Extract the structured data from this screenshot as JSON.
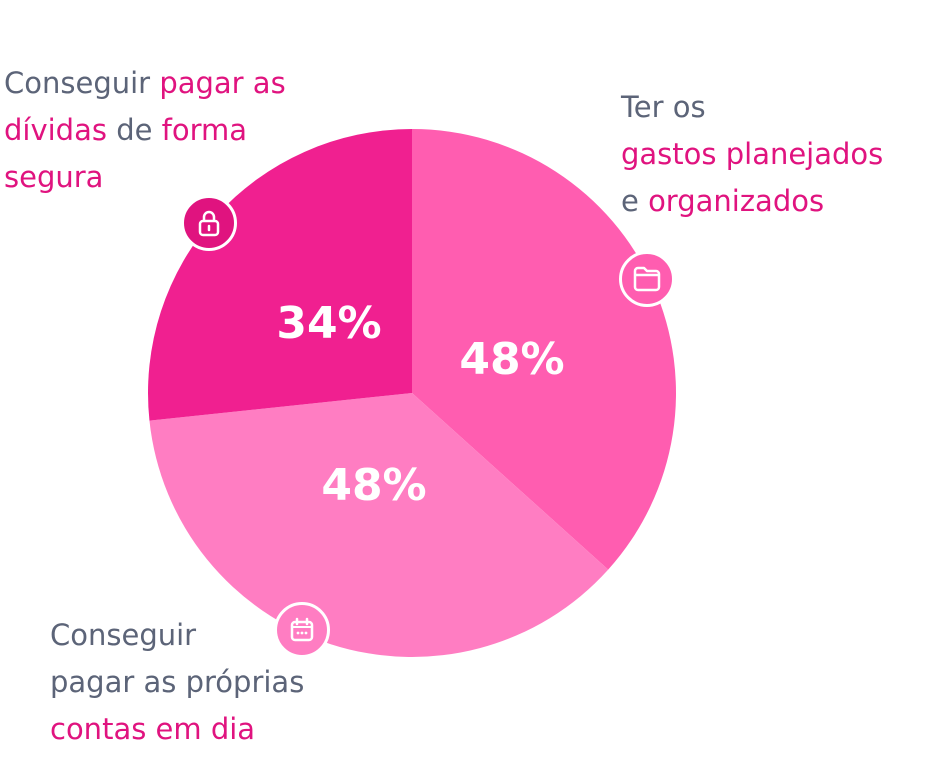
{
  "chart_data": {
    "type": "pie",
    "slices": [
      {
        "label": "Ter os gastos planejados e organizados",
        "value_label": "48%",
        "color": "#ff5db0"
      },
      {
        "label": "Conseguir pagar as próprias contas em dia",
        "value_label": "48%",
        "color": "#ff7dc2"
      },
      {
        "label": "Conseguir pagar as dívidas de forma segura",
        "value_label": "34%",
        "color": "#f02090"
      }
    ],
    "slice_angles_deg": [
      132,
      132,
      96
    ]
  },
  "colors": {
    "text_gray": "#5c6478",
    "accent_magenta": "#e0137f"
  },
  "callouts": {
    "top_left": {
      "icon": "lock-icon",
      "line1_plain": "Conseguir ",
      "line1_accent": "pagar as",
      "line2_accent": "dívidas",
      "line2_plain": " de ",
      "line2_accent2": "forma",
      "line3_accent": "segura"
    },
    "top_right": {
      "icon": "folder-icon",
      "line1_plain": "Ter os",
      "line2_accent": "gastos planejados",
      "line3_plain": "e ",
      "line3_accent": "organizados"
    },
    "bottom_left": {
      "icon": "calendar-icon",
      "line1_plain": "Conseguir",
      "line2_plain": "pagar as próprias",
      "line3_accent": "contas em dia"
    }
  }
}
